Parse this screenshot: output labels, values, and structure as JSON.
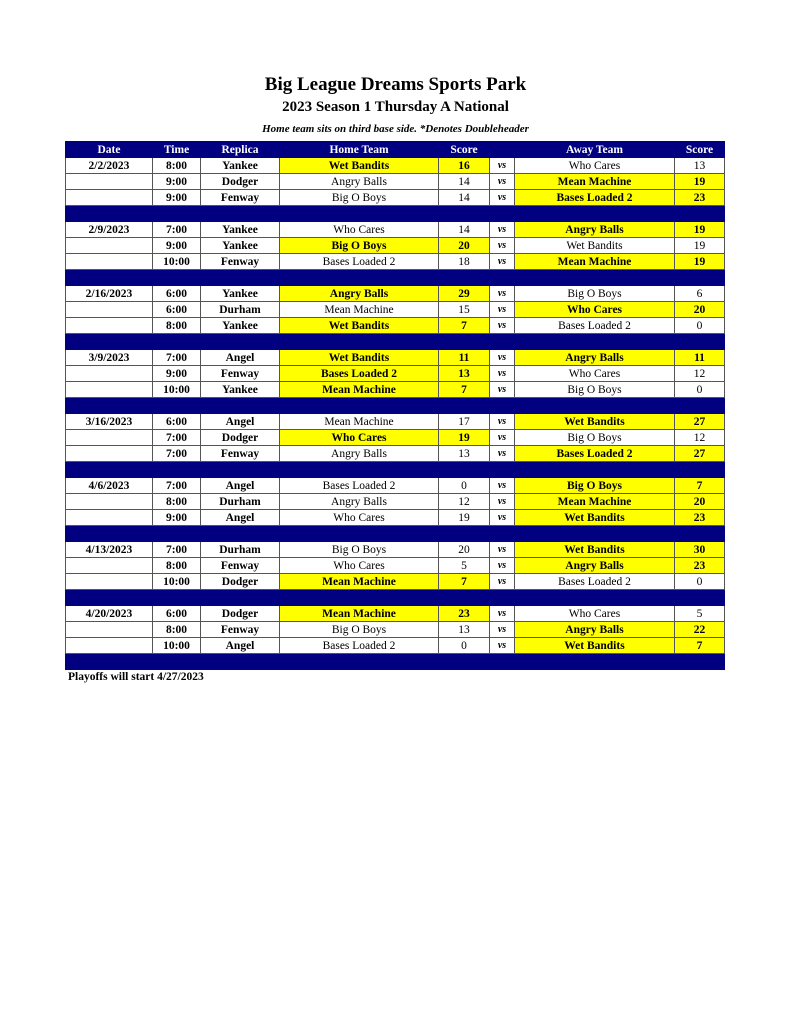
{
  "title": "Big League Dreams Sports Park",
  "subtitle": "2023 Season 1 Thursday A National",
  "note": "Home team sits on third base side.  *Denotes Doubleheader",
  "headers": [
    "Date",
    "Time",
    "Replica",
    "Home Team",
    "Score",
    "",
    "Away Team",
    "Score"
  ],
  "vs_label": "vs",
  "highlight_color": "#ffff00",
  "header_color": "#000080",
  "weeks": [
    {
      "date": "2/2/2023",
      "games": [
        {
          "time": "8:00",
          "replica": "Yankee",
          "home": "Wet Bandits",
          "home_score": "16",
          "away": "Who Cares",
          "away_score": "13",
          "winner": "home"
        },
        {
          "time": "9:00",
          "replica": "Dodger",
          "home": "Angry Balls",
          "home_score": "14",
          "away": "Mean Machine",
          "away_score": "19",
          "winner": "away"
        },
        {
          "time": "9:00",
          "replica": "Fenway",
          "home": "Big O Boys",
          "home_score": "14",
          "away": "Bases Loaded 2",
          "away_score": "23",
          "winner": "away"
        }
      ]
    },
    {
      "date": "2/9/2023",
      "games": [
        {
          "time": "7:00",
          "replica": "Yankee",
          "home": "Who Cares",
          "home_score": "14",
          "away": "Angry Balls",
          "away_score": "19",
          "winner": "away"
        },
        {
          "time": "9:00",
          "replica": "Yankee",
          "home": "Big O Boys",
          "home_score": "20",
          "away": "Wet Bandits",
          "away_score": "19",
          "winner": "home"
        },
        {
          "time": "10:00",
          "replica": "Fenway",
          "home": "Bases Loaded 2",
          "home_score": "18",
          "away": "Mean Machine",
          "away_score": "19",
          "winner": "away"
        }
      ]
    },
    {
      "date": "2/16/2023",
      "games": [
        {
          "time": "6:00",
          "replica": "Yankee",
          "home": "Angry Balls",
          "home_score": "29",
          "away": "Big O Boys",
          "away_score": "6",
          "winner": "home"
        },
        {
          "time": "6:00",
          "replica": "Durham",
          "home": "Mean Machine",
          "home_score": "15",
          "away": "Who Cares",
          "away_score": "20",
          "winner": "away"
        },
        {
          "time": "8:00",
          "replica": "Yankee",
          "home": "Wet Bandits",
          "home_score": "7",
          "away": "Bases Loaded 2",
          "away_score": "0",
          "winner": "home"
        }
      ]
    },
    {
      "date": "3/9/2023",
      "games": [
        {
          "time": "7:00",
          "replica": "Angel",
          "home": "Wet Bandits",
          "home_score": "11",
          "away": "Angry Balls",
          "away_score": "11",
          "winner": "both"
        },
        {
          "time": "9:00",
          "replica": "Fenway",
          "home": "Bases Loaded 2",
          "home_score": "13",
          "away": "Who Cares",
          "away_score": "12",
          "winner": "home"
        },
        {
          "time": "10:00",
          "replica": "Yankee",
          "home": "Mean Machine",
          "home_score": "7",
          "away": "Big O Boys",
          "away_score": "0",
          "winner": "home"
        }
      ]
    },
    {
      "date": "3/16/2023",
      "games": [
        {
          "time": "6:00",
          "replica": "Angel",
          "home": "Mean Machine",
          "home_score": "17",
          "away": "Wet Bandits",
          "away_score": "27",
          "winner": "away"
        },
        {
          "time": "7:00",
          "replica": "Dodger",
          "home": "Who Cares",
          "home_score": "19",
          "away": "Big O Boys",
          "away_score": "12",
          "winner": "home"
        },
        {
          "time": "7:00",
          "replica": "Fenway",
          "home": "Angry Balls",
          "home_score": "13",
          "away": "Bases Loaded 2",
          "away_score": "27",
          "winner": "away"
        }
      ]
    },
    {
      "date": "4/6/2023",
      "games": [
        {
          "time": "7:00",
          "replica": "Angel",
          "home": "Bases Loaded 2",
          "home_score": "0",
          "away": "Big O Boys",
          "away_score": "7",
          "winner": "away"
        },
        {
          "time": "8:00",
          "replica": "Durham",
          "home": "Angry Balls",
          "home_score": "12",
          "away": "Mean Machine",
          "away_score": "20",
          "winner": "away"
        },
        {
          "time": "9:00",
          "replica": "Angel",
          "home": "Who Cares",
          "home_score": "19",
          "away": "Wet Bandits",
          "away_score": "23",
          "winner": "away"
        }
      ]
    },
    {
      "date": "4/13/2023",
      "games": [
        {
          "time": "7:00",
          "replica": "Durham",
          "home": "Big O Boys",
          "home_score": "20",
          "away": "Wet Bandits",
          "away_score": "30",
          "winner": "away"
        },
        {
          "time": "8:00",
          "replica": "Fenway",
          "home": "Who Cares",
          "home_score": "5",
          "away": "Angry Balls",
          "away_score": "23",
          "winner": "away"
        },
        {
          "time": "10:00",
          "replica": "Dodger",
          "home": "Mean Machine",
          "home_score": "7",
          "away": "Bases Loaded 2",
          "away_score": "0",
          "winner": "home"
        }
      ]
    },
    {
      "date": "4/20/2023",
      "games": [
        {
          "time": "6:00",
          "replica": "Dodger",
          "home": "Mean Machine",
          "home_score": "23",
          "away": "Who Cares",
          "away_score": "5",
          "winner": "home"
        },
        {
          "time": "8:00",
          "replica": "Fenway",
          "home": "Big O Boys",
          "home_score": "13",
          "away": "Angry Balls",
          "away_score": "22",
          "winner": "away"
        },
        {
          "time": "10:00",
          "replica": "Angel",
          "home": "Bases Loaded 2",
          "home_score": "0",
          "away": "Wet Bandits",
          "away_score": "7",
          "winner": "away"
        }
      ]
    }
  ],
  "footer": "Playoffs will start 4/27/2023"
}
